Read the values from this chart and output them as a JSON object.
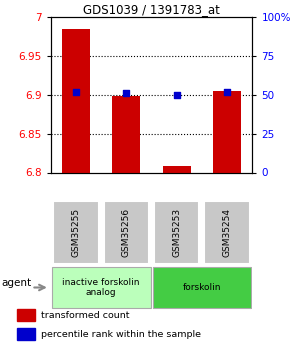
{
  "title": "GDS1039 / 1391783_at",
  "samples": [
    "GSM35255",
    "GSM35256",
    "GSM35253",
    "GSM35254"
  ],
  "bar_values": [
    6.985,
    6.899,
    6.808,
    6.905
  ],
  "percentile_values": [
    52,
    51,
    50,
    52
  ],
  "ylim_left": [
    6.8,
    7.0
  ],
  "ylim_right": [
    0,
    100
  ],
  "yticks_left": [
    6.8,
    6.85,
    6.9,
    6.95,
    7.0
  ],
  "yticks_right": [
    0,
    25,
    50,
    75,
    100
  ],
  "ytick_labels_left": [
    "6.8",
    "6.85",
    "6.9",
    "6.95",
    "7"
  ],
  "ytick_labels_right": [
    "0",
    "25",
    "50",
    "75",
    "100%"
  ],
  "bar_color": "#cc0000",
  "blue_color": "#0000cc",
  "bar_width": 0.55,
  "groups": [
    {
      "label": "inactive forskolin\nanalog",
      "indices": [
        0,
        1
      ],
      "color": "#bbffbb"
    },
    {
      "label": "forskolin",
      "indices": [
        2,
        3
      ],
      "color": "#44cc44"
    }
  ],
  "agent_label": "agent",
  "legend_bar_label": "transformed count",
  "legend_blue_label": "percentile rank within the sample",
  "x_positions": [
    0,
    1,
    2,
    3
  ]
}
